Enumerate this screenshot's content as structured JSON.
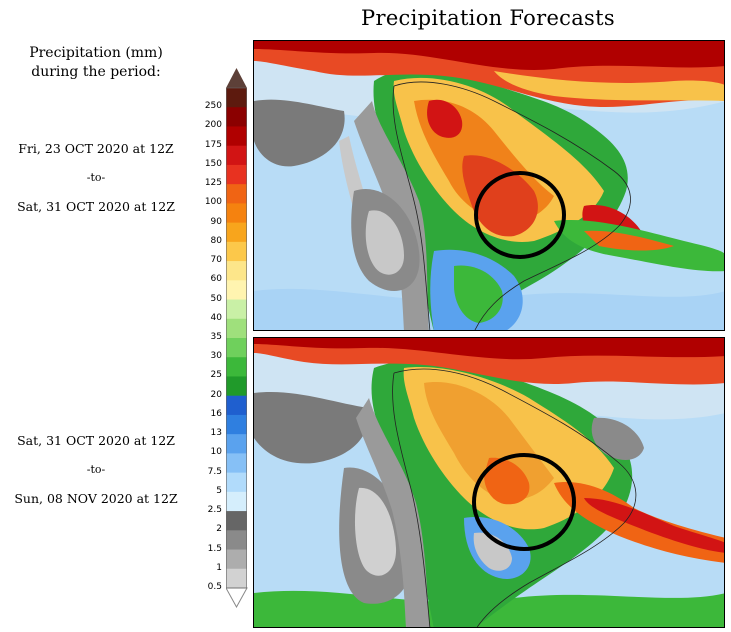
{
  "title": "Precipitation Forecasts",
  "legend": {
    "heading_line1": "Precipitation (mm)",
    "heading_line2": "during the period:",
    "ticks": [
      "250",
      "200",
      "175",
      "150",
      "125",
      "100",
      "90",
      "80",
      "70",
      "60",
      "50",
      "40",
      "35",
      "30",
      "25",
      "20",
      "16",
      "13",
      "10",
      "7.5",
      "5",
      "2.5",
      "2",
      "1.5",
      "1",
      "0.5"
    ],
    "colors": [
      "#5d1a0e",
      "#8b0000",
      "#b00000",
      "#d21414",
      "#e83220",
      "#f06414",
      "#f5820f",
      "#f8a51c",
      "#fcc84a",
      "#fde68a",
      "#fff4b0",
      "#c9f0a6",
      "#9fe07c",
      "#6fd05c",
      "#3cb83a",
      "#209a2a",
      "#1f5fcf",
      "#2f7fe0",
      "#5aa2ee",
      "#86c0f6",
      "#b1dbfb",
      "#d5eefc",
      "#666666",
      "#8a8a8a",
      "#adadad",
      "#d2d2d2"
    ],
    "top_arrow_color": "#5d4038"
  },
  "panels": [
    {
      "start": "Fri, 23 OCT 2020 at 12Z",
      "to": "-to-",
      "end": "Sat, 31 OCT 2020 at 12Z"
    },
    {
      "start": "Sat, 31 OCT 2020 at 12Z",
      "to": "-to-",
      "end": "Sun, 08 NOV 2020 at 12Z"
    }
  ]
}
